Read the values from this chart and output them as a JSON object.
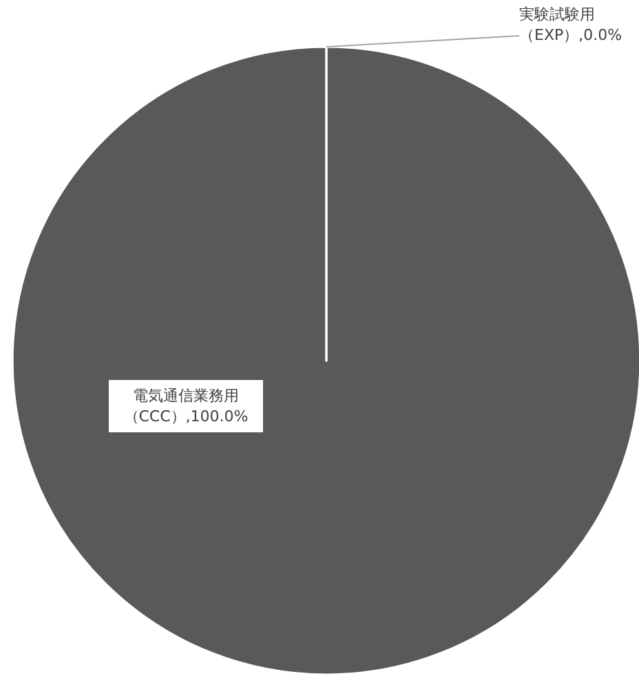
{
  "chart_data": {
    "type": "pie",
    "categories": [
      "電気通信業務用（CCC）",
      "実験試験用（EXP）"
    ],
    "values": [
      100,
      0
    ],
    "value_labels": [
      ",100.0%",
      ",0.0%"
    ],
    "colors": [
      "#595959",
      "#595959"
    ],
    "legend": false
  }
}
